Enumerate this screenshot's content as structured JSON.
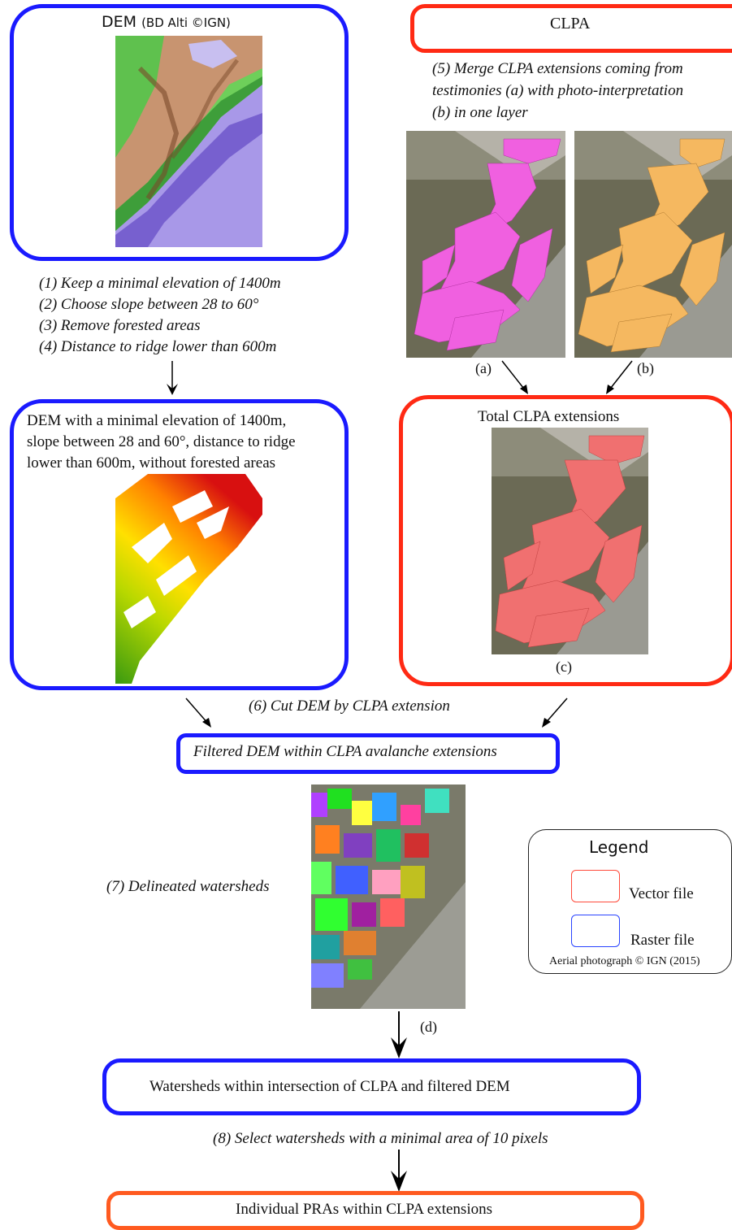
{
  "dem_box": {
    "title_main": "DEM",
    "title_sub": "(BD Alti ©IGN)"
  },
  "clpa_box": {
    "title": "CLPA"
  },
  "step5": {
    "line1": "(5) Merge CLPA extensions  coming from",
    "line2": "testimonies (a) with photo-interpretation",
    "line3": "(b) in one layer"
  },
  "labels": {
    "a": "(a)",
    "b": "(b)",
    "c": "(c)",
    "d": "(d)"
  },
  "steps_1_4": {
    "s1": "(1) Keep a minimal elevation of 1400m",
    "s2": "(2) Choose slope between 28 to 60°",
    "s3": "(3) Remove forested areas",
    "s4": "(4) Distance to ridge lower than  600m"
  },
  "dem_filtered_box": {
    "line1": "DEM  with a minimal elevation of 1400m,",
    "line2": "slope between 28 and 60°, distance to ridge",
    "line3": "lower than 600m, without forested areas"
  },
  "total_clpa_box": {
    "title": "Total CLPA extensions"
  },
  "step6": "(6) Cut DEM by CLPA extension",
  "filtered_dem_box": "Filtered DEM within CLPA avalanche extensions",
  "step7": "(7) Delineated watersheds",
  "legend": {
    "title": "Legend",
    "vector": "Vector file",
    "raster": "Raster file",
    "credit": "Aerial photograph © IGN  (2015)",
    "vector_color": "#ff4a3a",
    "raster_color": "#2a44ff"
  },
  "watersheds_box": "Watersheds within  intersection  of CLPA and filtered DEM",
  "step8": "(8) Select watersheds with a minimal area of 10 pixels",
  "pra_box": "Individual PRAs within CLPA extensions",
  "colors": {
    "raster_border": "#1a1aff",
    "vector_border": "#ff2a14",
    "clpa_pink": "#f060e0",
    "clpa_orange": "#f5b860",
    "clpa_total": "#f07070"
  }
}
